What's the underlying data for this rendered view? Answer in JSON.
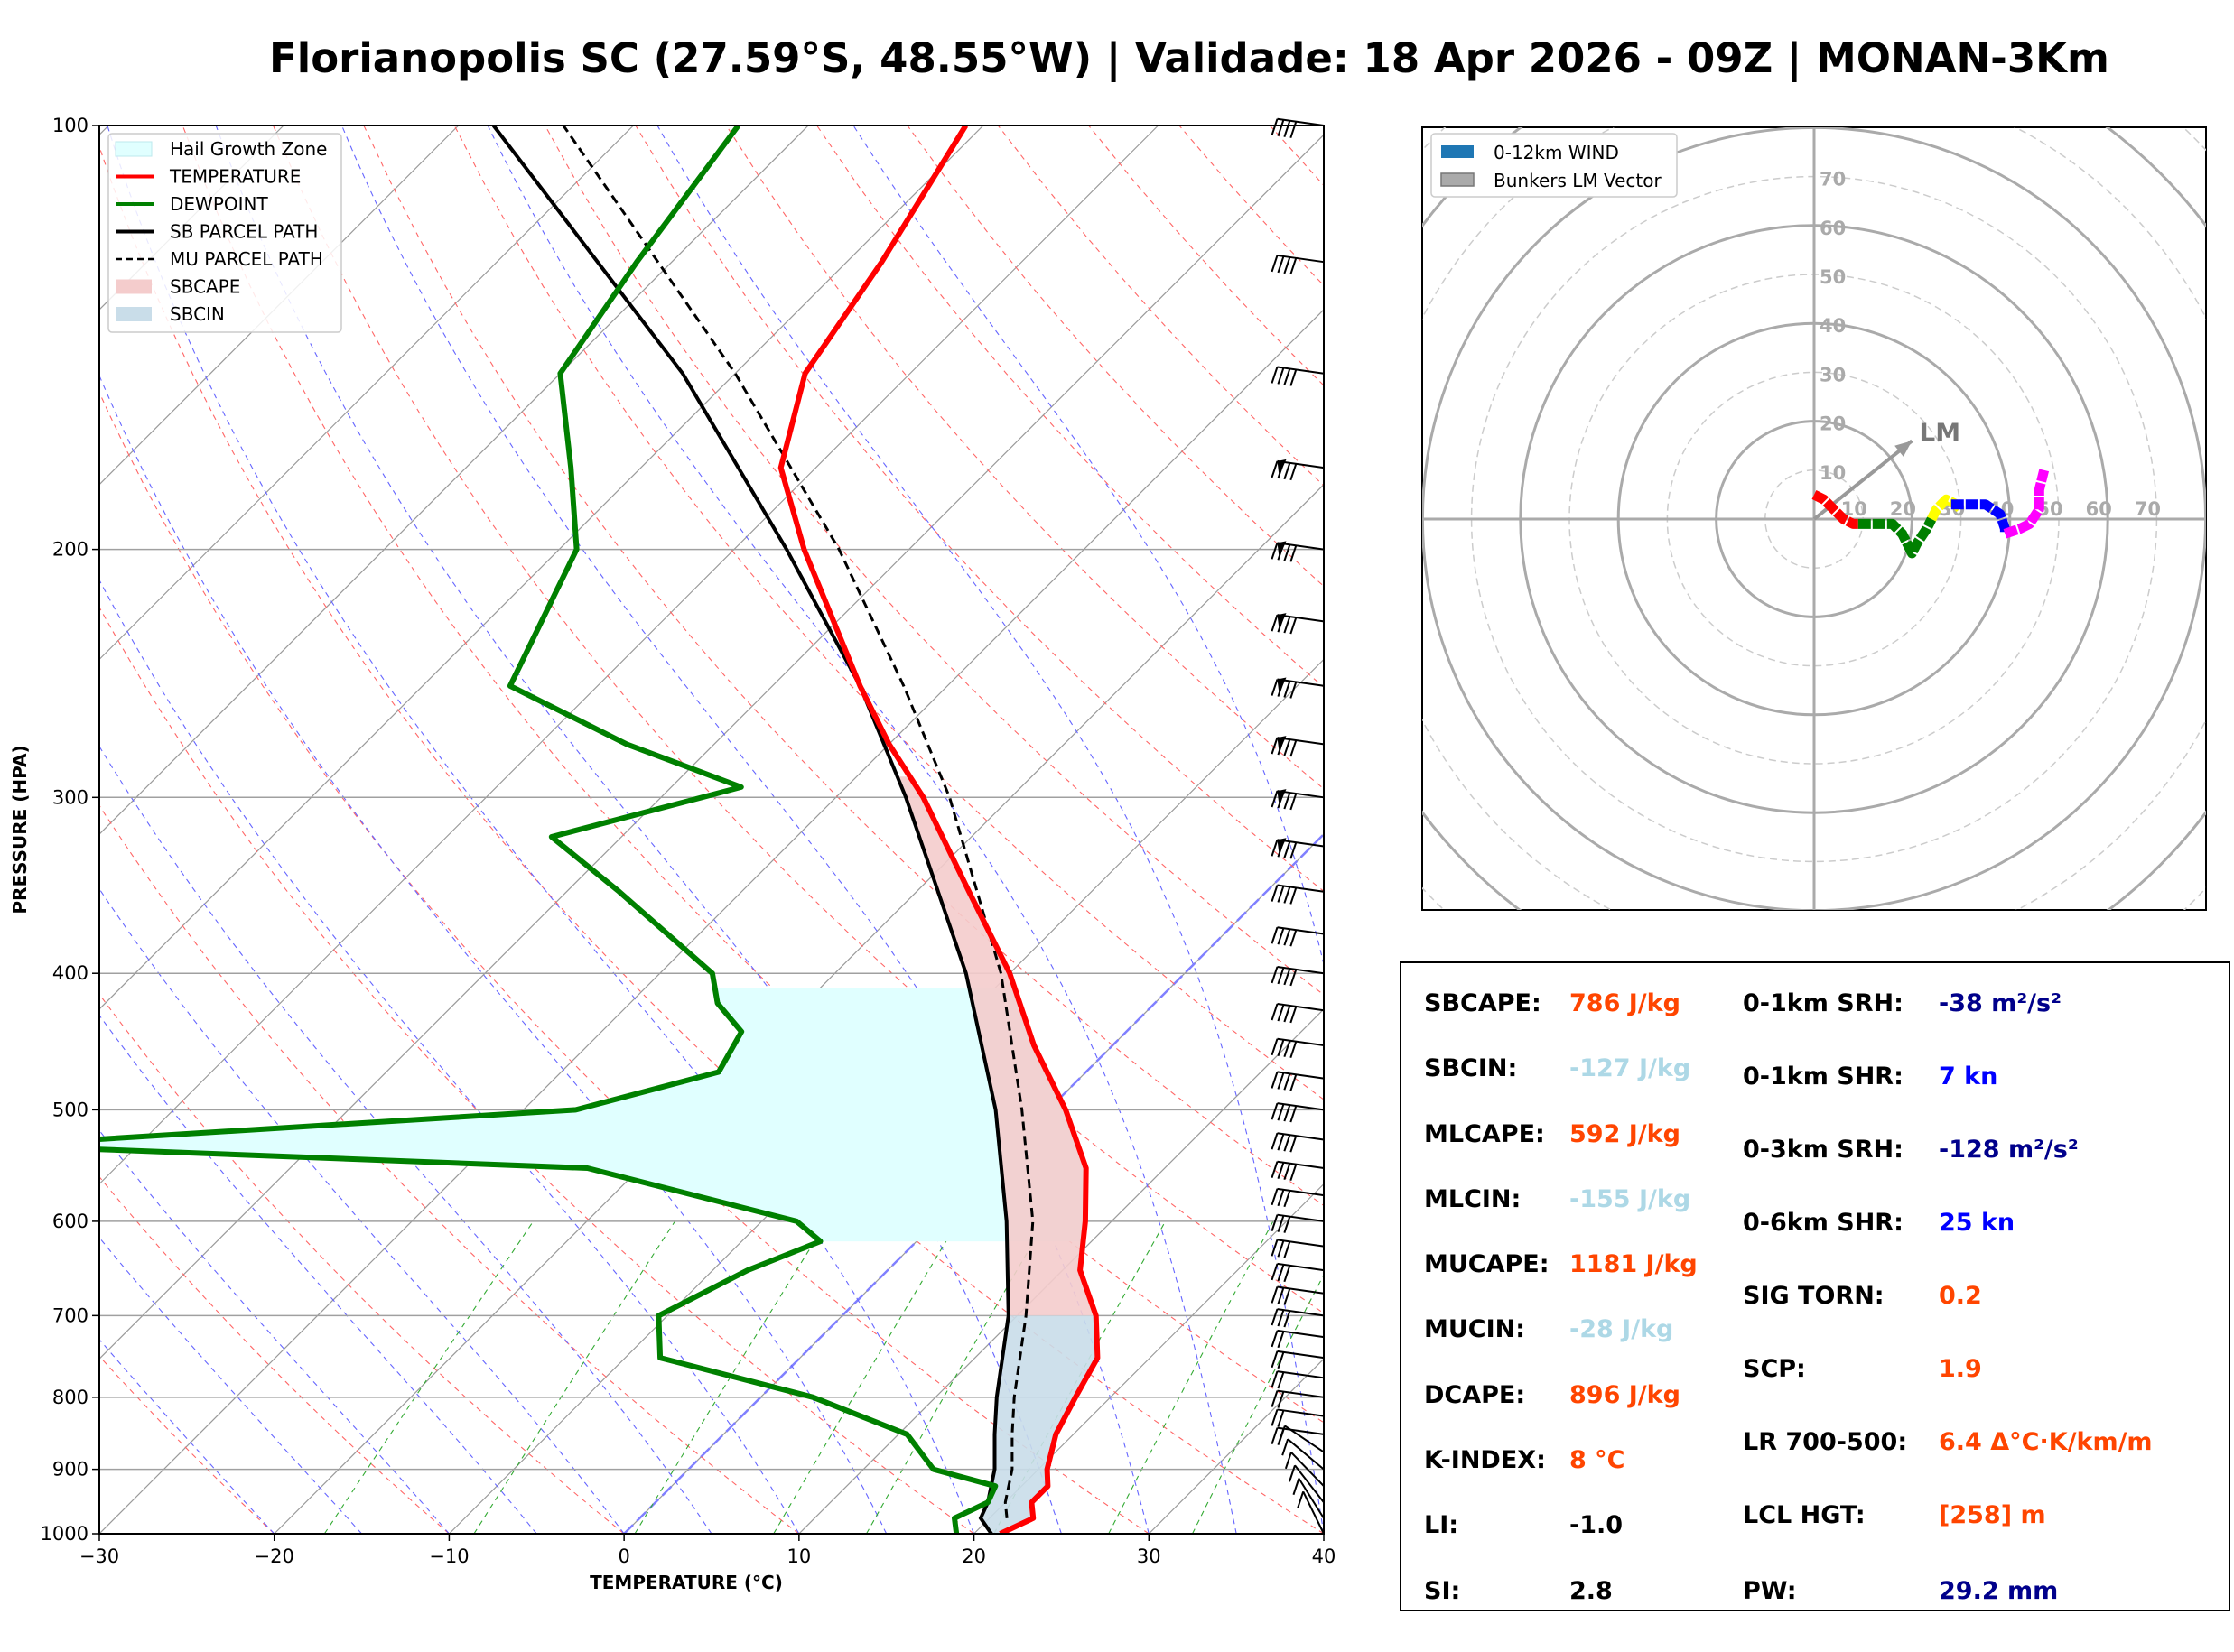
{
  "title": "Florianopolis SC (27.59°S, 48.55°W) | Validade: 18 Apr 2026 - 09Z | MONAN-3Km",
  "skewt": {
    "xlabel": "TEMPERATURE (°C)",
    "ylabel": "PRESSURE (HPA)",
    "x_ticks": [
      "−30",
      "−20",
      "−10",
      "0",
      "10",
      "20",
      "30",
      "40"
    ],
    "y_ticks": [
      "100",
      "200",
      "300",
      "400",
      "500",
      "600",
      "700",
      "800",
      "900",
      "1000"
    ],
    "legend": [
      {
        "label": "Hail Growth Zone",
        "color": "#e0ffff",
        "kind": "patch"
      },
      {
        "label": "TEMPERATURE",
        "color": "#ff0000",
        "kind": "line"
      },
      {
        "label": "DEWPOINT",
        "color": "#008000",
        "kind": "line"
      },
      {
        "label": "SB PARCEL PATH",
        "color": "#000000",
        "kind": "line"
      },
      {
        "label": "MU PARCEL PATH",
        "color": "#000000",
        "kind": "dashed"
      },
      {
        "label": "SBCAPE",
        "color": "#f4cccc",
        "kind": "patch"
      },
      {
        "label": "SBCIN",
        "color": "#c9dde9",
        "kind": "patch"
      }
    ]
  },
  "chart_data": {
    "type": "skewt",
    "title": "Florianopolis SC (27.59°S, 48.55°W) | Validade: 18 Apr 2026 - 09Z | MONAN-3Km",
    "xlabel": "TEMPERATURE (°C)",
    "ylabel": "PRESSURE (HPA)",
    "xlim": [
      -30,
      40
    ],
    "ylim": [
      1000,
      100
    ],
    "temperature": [
      {
        "p": 1000,
        "t": 21.5
      },
      {
        "p": 975,
        "t": 22.5
      },
      {
        "p": 950,
        "t": 21.5
      },
      {
        "p": 925,
        "t": 21.5
      },
      {
        "p": 900,
        "t": 20.5
      },
      {
        "p": 850,
        "t": 19.0
      },
      {
        "p": 800,
        "t": 18.0
      },
      {
        "p": 750,
        "t": 17.0
      },
      {
        "p": 700,
        "t": 14.5
      },
      {
        "p": 650,
        "t": 11.0
      },
      {
        "p": 600,
        "t": 8.5
      },
      {
        "p": 550,
        "t": 5.5
      },
      {
        "p": 500,
        "t": 1.0
      },
      {
        "p": 450,
        "t": -4.5
      },
      {
        "p": 400,
        "t": -10.0
      },
      {
        "p": 350,
        "t": -17.0
      },
      {
        "p": 300,
        "t": -25.0
      },
      {
        "p": 275,
        "t": -30.0
      },
      {
        "p": 250,
        "t": -35.0
      },
      {
        "p": 200,
        "t": -46.0
      },
      {
        "p": 175,
        "t": -52.0
      },
      {
        "p": 150,
        "t": -56.0
      },
      {
        "p": 125,
        "t": -58.0
      },
      {
        "p": 100,
        "t": -61.0
      }
    ],
    "dewpoint": [
      {
        "p": 1000,
        "t": 19.0
      },
      {
        "p": 975,
        "t": 18.0
      },
      {
        "p": 950,
        "t": 19.0
      },
      {
        "p": 925,
        "t": 18.5
      },
      {
        "p": 900,
        "t": 14.0
      },
      {
        "p": 850,
        "t": 10.5
      },
      {
        "p": 800,
        "t": 3.0
      },
      {
        "p": 750,
        "t": -8.0
      },
      {
        "p": 700,
        "t": -10.5
      },
      {
        "p": 650,
        "t": -8.0
      },
      {
        "p": 620,
        "t": -5.5
      },
      {
        "p": 600,
        "t": -8.0
      },
      {
        "p": 550,
        "t": -23.0
      },
      {
        "p": 530,
        "t": -58.0
      },
      {
        "p": 500,
        "t": -27.0
      },
      {
        "p": 470,
        "t": -21.0
      },
      {
        "p": 440,
        "t": -22.0
      },
      {
        "p": 420,
        "t": -25.0
      },
      {
        "p": 400,
        "t": -27.0
      },
      {
        "p": 350,
        "t": -37.0
      },
      {
        "p": 320,
        "t": -44.0
      },
      {
        "p": 295,
        "t": -36.0
      },
      {
        "p": 275,
        "t": -45.0
      },
      {
        "p": 250,
        "t": -55.0
      },
      {
        "p": 200,
        "t": -59.0
      },
      {
        "p": 175,
        "t": -64.0
      },
      {
        "p": 150,
        "t": -70.0
      },
      {
        "p": 125,
        "t": -72.0
      },
      {
        "p": 100,
        "t": -74.0
      }
    ],
    "sb_parcel": [
      {
        "p": 1000,
        "t": 21.0
      },
      {
        "p": 975,
        "t": 19.5
      },
      {
        "p": 950,
        "t": 19.0
      },
      {
        "p": 900,
        "t": 17.5
      },
      {
        "p": 850,
        "t": 15.5
      },
      {
        "p": 800,
        "t": 13.5
      },
      {
        "p": 700,
        "t": 9.5
      },
      {
        "p": 600,
        "t": 4.0
      },
      {
        "p": 500,
        "t": -3.0
      },
      {
        "p": 400,
        "t": -12.5
      },
      {
        "p": 300,
        "t": -26.0
      },
      {
        "p": 250,
        "t": -35.0
      },
      {
        "p": 200,
        "t": -47.0
      },
      {
        "p": 150,
        "t": -63.0
      },
      {
        "p": 100,
        "t": -88.0
      }
    ],
    "mu_parcel": [
      {
        "p": 975,
        "t": 21.0
      },
      {
        "p": 950,
        "t": 20.0
      },
      {
        "p": 900,
        "t": 18.5
      },
      {
        "p": 850,
        "t": 16.5
      },
      {
        "p": 800,
        "t": 14.5
      },
      {
        "p": 700,
        "t": 10.5
      },
      {
        "p": 600,
        "t": 5.5
      },
      {
        "p": 500,
        "t": -1.5
      },
      {
        "p": 400,
        "t": -10.5
      },
      {
        "p": 300,
        "t": -23.5
      },
      {
        "p": 250,
        "t": -32.5
      },
      {
        "p": 200,
        "t": -44.0
      },
      {
        "p": 150,
        "t": -60.0
      },
      {
        "p": 100,
        "t": -84.0
      }
    ],
    "hail_growth_zone_hpa": [
      410,
      620
    ],
    "wind_barbs_hpa": [
      1000,
      975,
      950,
      925,
      900,
      875,
      850,
      825,
      800,
      775,
      750,
      725,
      700,
      675,
      650,
      625,
      600,
      575,
      550,
      525,
      500,
      475,
      450,
      425,
      400,
      375,
      350,
      325,
      300,
      275,
      250,
      225,
      200,
      175,
      150,
      125,
      100
    ],
    "hodograph": {
      "legend": [
        "0-12km WIND",
        "Bunkers LM Vector"
      ],
      "ring_labels": [
        "10",
        "20",
        "30",
        "40",
        "50",
        "60",
        "70"
      ],
      "lm_label": "LM",
      "lm_vector": {
        "u": 20,
        "v": 16
      },
      "segments": [
        {
          "color": "#ff0000",
          "points": [
            [
              0,
              5
            ],
            [
              2,
              4
            ],
            [
              4,
              2
            ],
            [
              6,
              0
            ],
            [
              8,
              -1
            ],
            [
              9,
              -1
            ]
          ]
        },
        {
          "color": "#008000",
          "points": [
            [
              9,
              -1
            ],
            [
              13,
              -1
            ],
            [
              16,
              -1
            ],
            [
              18,
              -3
            ],
            [
              20,
              -7
            ],
            [
              21,
              -5
            ],
            [
              23,
              -2
            ],
            [
              24,
              0
            ]
          ]
        },
        {
          "color": "#ffff00",
          "points": [
            [
              24,
              0
            ],
            [
              25,
              2
            ],
            [
              27,
              4
            ],
            [
              29,
              3
            ],
            [
              30,
              2
            ]
          ]
        },
        {
          "color": "#0000ff",
          "points": [
            [
              28,
              3
            ],
            [
              32,
              3
            ],
            [
              35,
              3
            ],
            [
              38,
              1
            ],
            [
              39,
              -2
            ],
            [
              39,
              -3
            ]
          ]
        },
        {
          "color": "#ff00ff",
          "points": [
            [
              39,
              -3
            ],
            [
              42,
              -2
            ],
            [
              44,
              -1
            ],
            [
              46,
              2
            ],
            [
              46,
              6
            ],
            [
              47,
              10
            ]
          ]
        }
      ]
    }
  },
  "hodograph": {
    "legend": [
      {
        "label": "0-12km WIND",
        "color": "#1f77b4"
      },
      {
        "label": "Bunkers LM Vector",
        "color": "#aaaaaa"
      }
    ]
  },
  "params": {
    "left": [
      {
        "label": "SBCAPE:",
        "value": "786 J/kg",
        "color": "#ff4500"
      },
      {
        "label": "SBCIN:",
        "value": "-127 J/kg",
        "color": "#add8e6"
      },
      {
        "label": "MLCAPE:",
        "value": "592 J/kg",
        "color": "#ff4500"
      },
      {
        "label": "MLCIN:",
        "value": "-155 J/kg",
        "color": "#add8e6"
      },
      {
        "label": "MUCAPE:",
        "value": "1181 J/kg",
        "color": "#ff4500"
      },
      {
        "label": "MUCIN:",
        "value": "-28 J/kg",
        "color": "#add8e6"
      },
      {
        "label": "DCAPE:",
        "value": "896 J/kg",
        "color": "#ff4500"
      },
      {
        "label": "K-INDEX:",
        "value": "8 °C",
        "color": "#ff4500"
      },
      {
        "label": "LI:",
        "value": "-1.0",
        "color": "#000000"
      },
      {
        "label": "SI:",
        "value": "2.8",
        "color": "#000000"
      }
    ],
    "right": [
      {
        "label": "0-1km SRH:",
        "value": "-38 m²/s²",
        "color": "#00008b"
      },
      {
        "label": "0-1km SHR:",
        "value": "7 kn",
        "color": "#0000ff"
      },
      {
        "label": "0-3km SRH:",
        "value": "-128 m²/s²",
        "color": "#00008b"
      },
      {
        "label": "0-6km SHR:",
        "value": "25 kn",
        "color": "#0000ff"
      },
      {
        "label": "SIG TORN:",
        "value": "0.2",
        "color": "#ff4500"
      },
      {
        "label": "SCP:",
        "value": "1.9",
        "color": "#ff4500"
      },
      {
        "label": "LR 700-500:",
        "value": "6.4 Δ°C·K/km/m",
        "color": "#ff4500"
      },
      {
        "label": "LCL HGT:",
        "value": "[258] m",
        "color": "#ff4500"
      },
      {
        "label": "PW:",
        "value": "29.2 mm",
        "color": "#00008b"
      }
    ]
  }
}
